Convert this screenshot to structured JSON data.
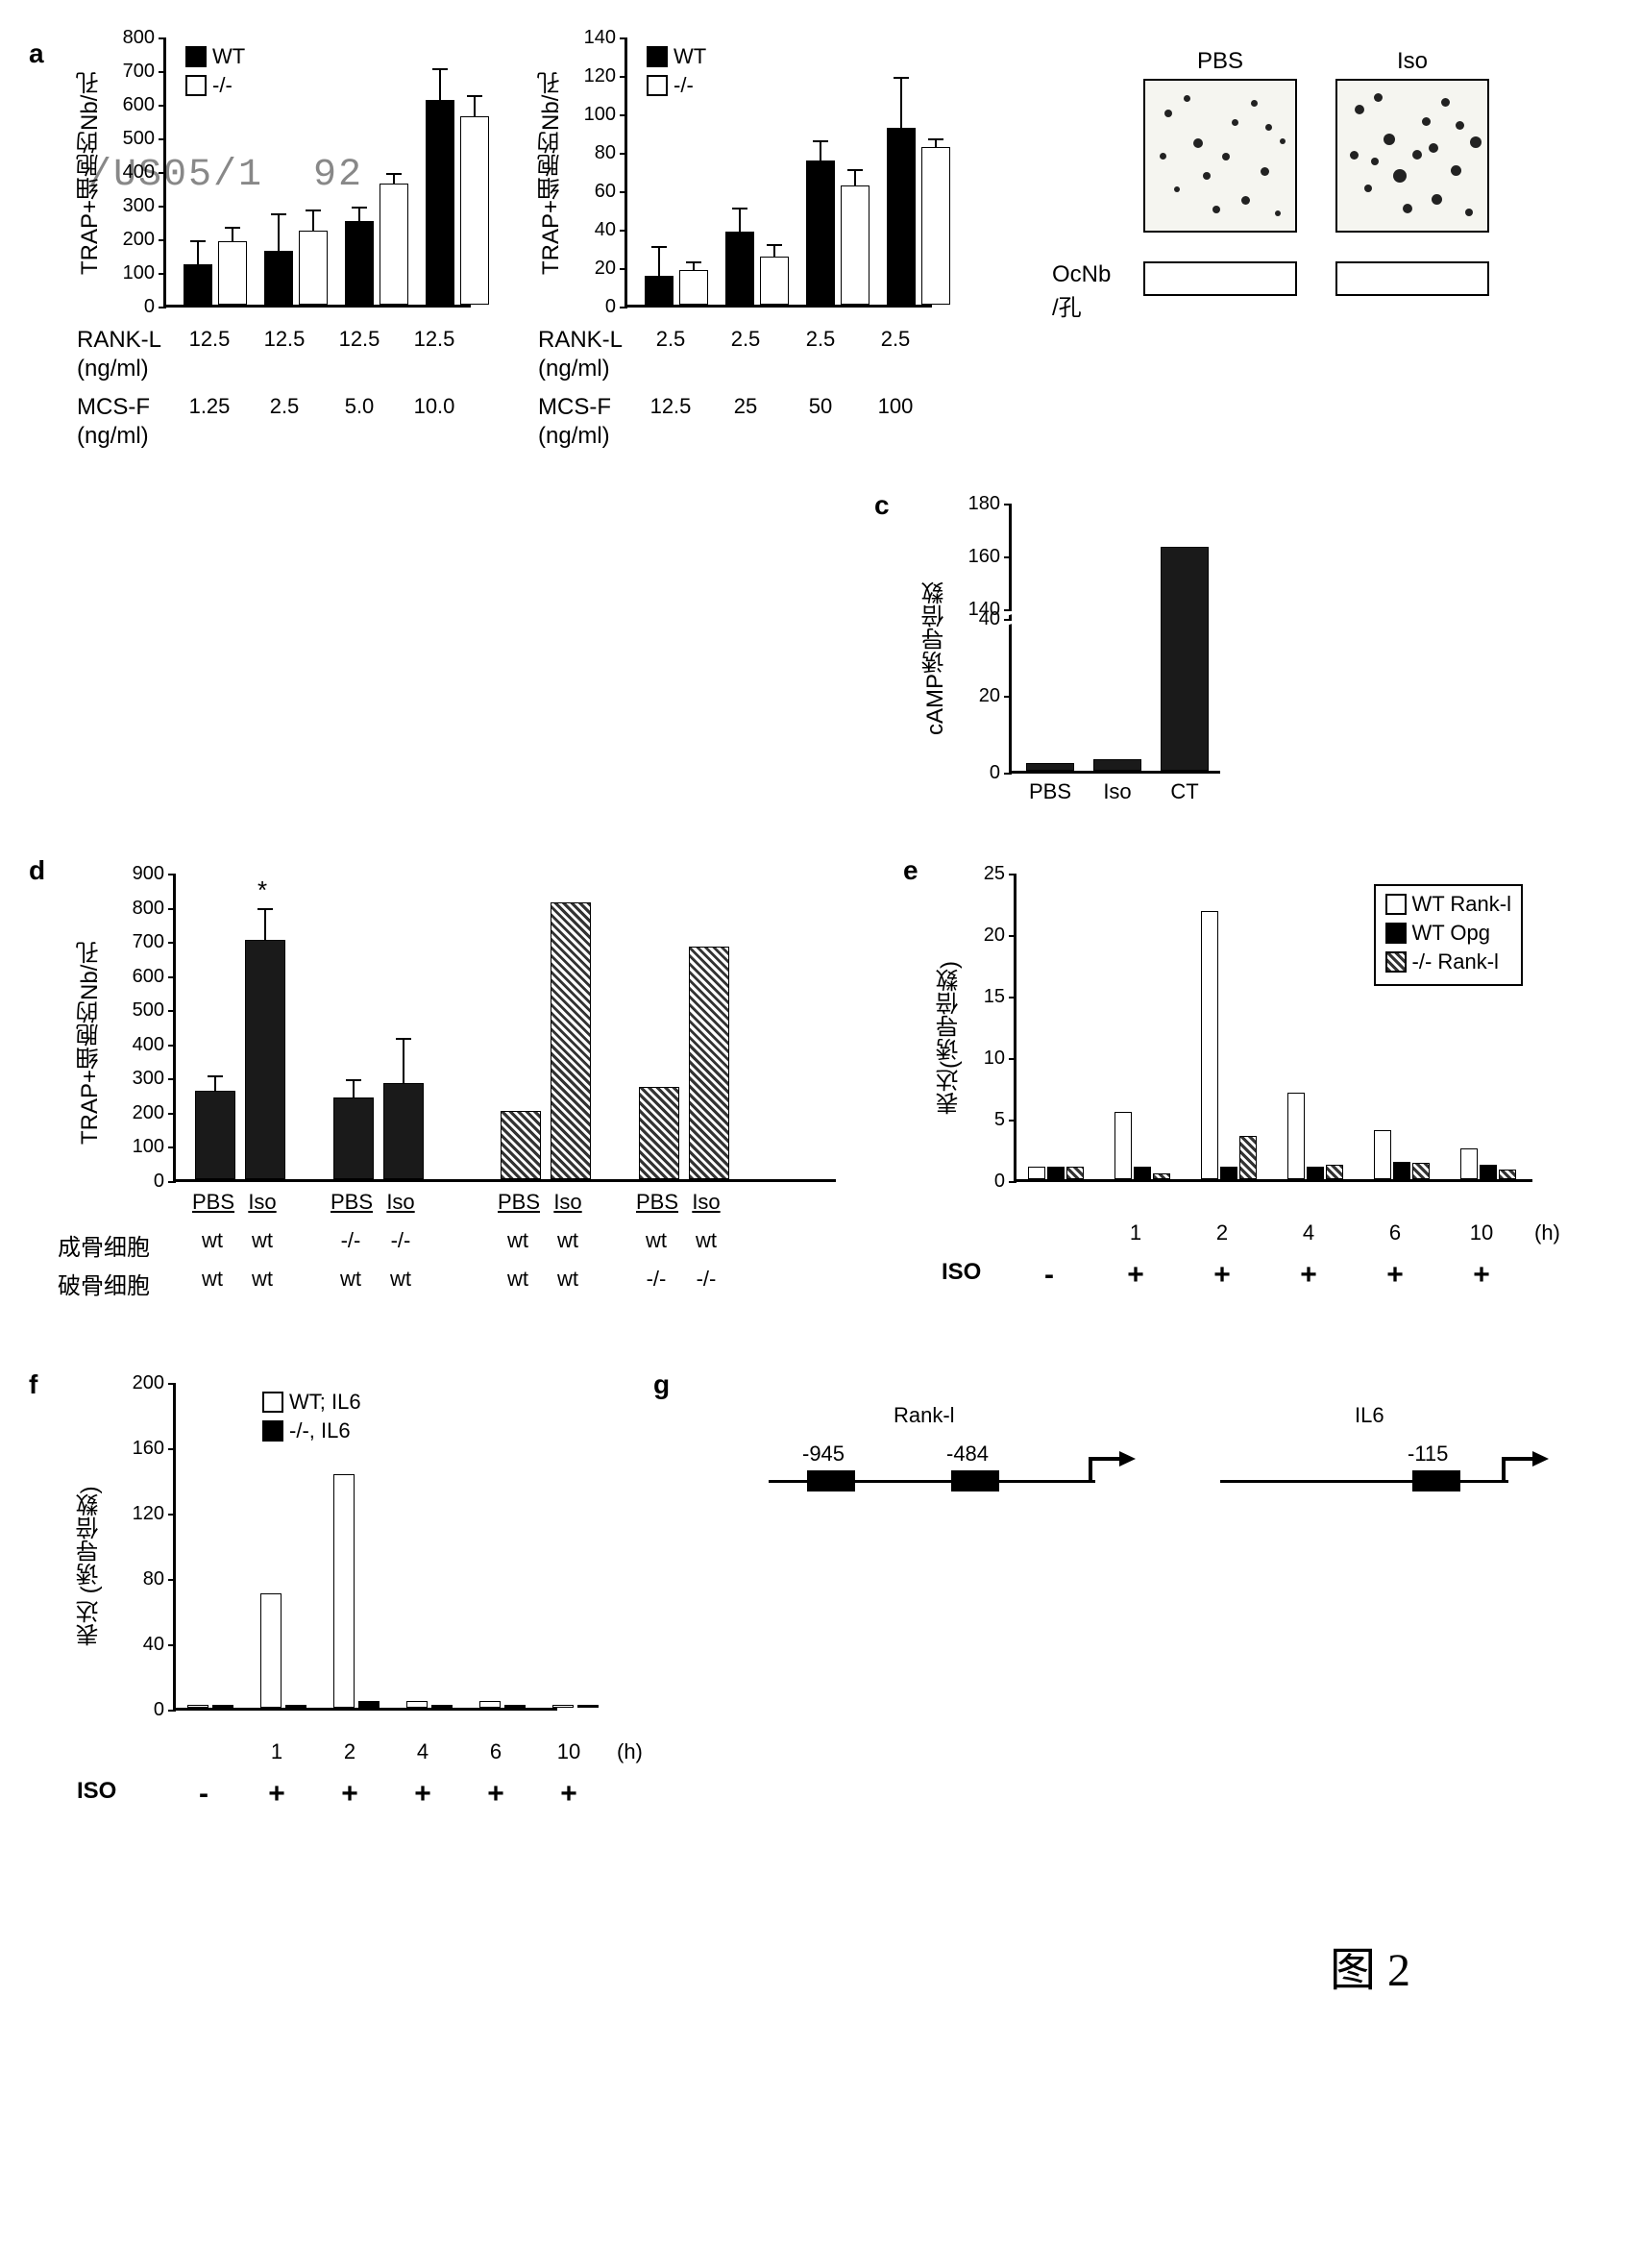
{
  "figure_label": "图 2",
  "watermark": "/US05/1  92",
  "panel_a": {
    "label": "a",
    "chart1": {
      "ylabel": "TRAP+细胞的Nb/孔",
      "ymax": 800,
      "ymin": 0,
      "ystep": 100,
      "legend": {
        "wt": "WT",
        "ko": "-/-"
      },
      "colors": {
        "wt": "#000000",
        "ko": "#ffffff"
      },
      "categories": [
        "12.5",
        "12.5",
        "12.5",
        "12.5"
      ],
      "mcsf": [
        "1.25",
        "2.5",
        "5.0",
        "10.0"
      ],
      "values_wt": [
        120,
        160,
        250,
        610
      ],
      "values_ko": [
        190,
        220,
        360,
        560
      ],
      "errors_wt": [
        70,
        110,
        40,
        90
      ],
      "errors_ko": [
        40,
        60,
        30,
        60
      ]
    },
    "chart2": {
      "ylabel": "TRAP+细胞的Nb/孔",
      "ymax": 140,
      "ymin": 0,
      "ystep": 20,
      "values_wt": [
        15,
        38,
        75,
        92
      ],
      "values_ko": [
        18,
        25,
        62,
        82
      ],
      "errors_wt": [
        15,
        12,
        10,
        26
      ],
      "errors_ko": [
        4,
        6,
        8,
        4
      ],
      "categories": [
        "2.5",
        "2.5",
        "2.5",
        "2.5"
      ],
      "mcsf": [
        "12.5",
        "25",
        "50",
        "100"
      ]
    },
    "row1_label": "RANK-L",
    "row1_unit": "(ng/ml)",
    "row2_label": "MCS-F",
    "row2_unit": "(ng/ml)"
  },
  "panel_b": {
    "pbs_label": "PBS",
    "iso_label": "Iso",
    "ocnb_label": "OcNb",
    "per_well": "/孔"
  },
  "panel_c": {
    "label": "c",
    "ylabel": "cAMP诱导倍数",
    "yticks": [
      0,
      40,
      20,
      140,
      160,
      180
    ],
    "categories": [
      "PBS",
      "Iso",
      "CT"
    ],
    "values": [
      2,
      3,
      163
    ],
    "bar_color": "#1a1a1a"
  },
  "panel_d": {
    "label": "d",
    "ylabel": "TRAP+细胞的Nb/孔",
    "ymax": 900,
    "ymin": 0,
    "ystep": 100,
    "groups": [
      {
        "pbs": 260,
        "iso": 700,
        "pbs_err": 40,
        "iso_err": 90,
        "ob": "wt",
        "oc": "wt",
        "pattern": "solid"
      },
      {
        "pbs": 240,
        "iso": 280,
        "pbs_err": 50,
        "iso_err": 130,
        "ob": "-/-",
        "oc": "wt",
        "pattern": "solid"
      },
      {
        "pbs": 200,
        "iso": 810,
        "pbs_err": 0,
        "iso_err": 0,
        "ob": "wt",
        "oc": "wt",
        "pattern": "hatched"
      },
      {
        "pbs": 270,
        "iso": 680,
        "pbs_err": 0,
        "iso_err": 0,
        "ob": "wt",
        "oc": "-/-",
        "pattern": "hatched"
      }
    ],
    "pbs_label": "PBS",
    "iso_label": "Iso",
    "ob_label": "成骨细胞",
    "oc_label": "破骨细胞",
    "star": "*"
  },
  "panel_e": {
    "label": "e",
    "ylabel": "表达(诱导倍数)",
    "ymax": 25,
    "ymin": 0,
    "ystep": 5,
    "legend": {
      "wt_rankl": "WT Rank-l",
      "wt_opg": "WT Opg",
      "ko_rankl": "-/- Rank-l"
    },
    "colors": {
      "wt_rankl": "#ffffff",
      "wt_opg": "#000000",
      "ko_rankl": "hatched"
    },
    "times": [
      "1",
      "2",
      "4",
      "6",
      "10"
    ],
    "row_label": "ISO",
    "h_label": "(h)",
    "baseline": {
      "wt_rankl": 1,
      "wt_opg": 1,
      "ko_rankl": 1
    },
    "values": [
      {
        "wt_rankl": 5.5,
        "wt_opg": 1,
        "ko_rankl": 0.5
      },
      {
        "wt_rankl": 21.8,
        "wt_opg": 1,
        "ko_rankl": 3.5
      },
      {
        "wt_rankl": 7,
        "wt_opg": 1,
        "ko_rankl": 1.2
      },
      {
        "wt_rankl": 4,
        "wt_opg": 1.4,
        "ko_rankl": 1.3
      },
      {
        "wt_rankl": 2.5,
        "wt_opg": 1.2,
        "ko_rankl": 0.8
      }
    ],
    "minus_label": "-",
    "plus_label": "+"
  },
  "panel_f": {
    "label": "f",
    "ylabel": "表达 (诱导倍数)",
    "ymax": 200,
    "ymin": 0,
    "ystep": 40,
    "legend": {
      "wt": "WT; IL6",
      "ko": "-/-, IL6"
    },
    "colors": {
      "wt": "#ffffff",
      "ko": "#000000"
    },
    "times": [
      "1",
      "2",
      "4",
      "6",
      "10"
    ],
    "row_label": "ISO",
    "h_label": "(h)",
    "values_wt": [
      70,
      143,
      4,
      4,
      2
    ],
    "values_ko": [
      2,
      4,
      2,
      2,
      2
    ],
    "minus_label": "-",
    "plus_label": "+"
  },
  "panel_g": {
    "label": "g",
    "rankl": {
      "name": "Rank-l",
      "sites": [
        "-945",
        "-484"
      ]
    },
    "il6": {
      "name": "IL6",
      "sites": [
        "-115"
      ]
    }
  }
}
